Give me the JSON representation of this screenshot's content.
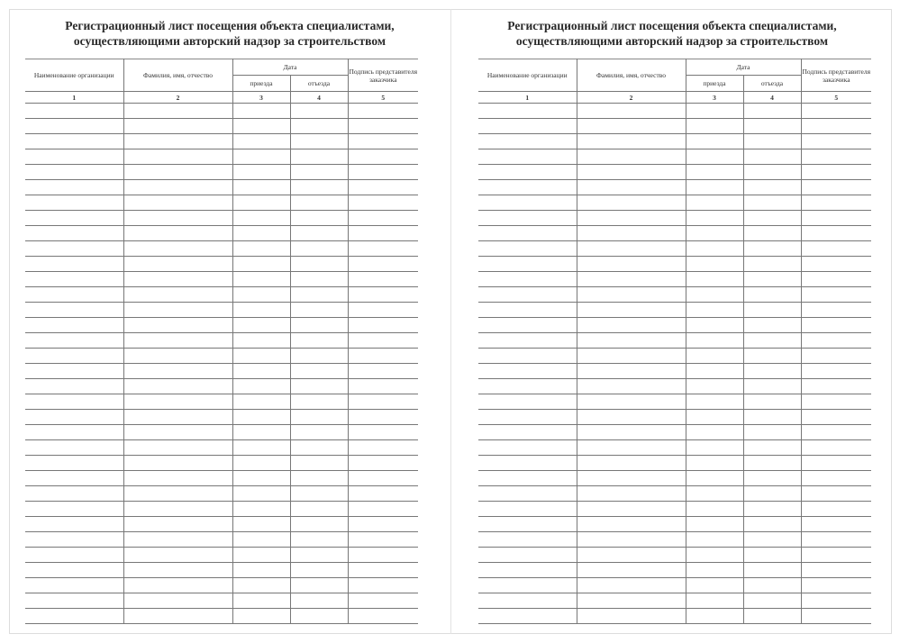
{
  "pages": [
    {
      "title_line1": "Регистрационный лист посещения объекта специалистами,",
      "title_line2": "осуществляющими авторский надзор за строительством",
      "columns": {
        "org": "Наименование организации",
        "name": "Фамилия, имя, отчество",
        "date": "Дата",
        "arrival": "приезда",
        "departure": "отъезда",
        "signature": "Подпись представителя заказчика"
      },
      "column_numbers": [
        "1",
        "2",
        "3",
        "4",
        "5"
      ]
    },
    {
      "title_line1": "Регистрационный лист посещения объекта специалистами,",
      "title_line2": "осуществляющими авторский надзор за строительством",
      "columns": {
        "org": "Наименование организации",
        "name": "Фамилия, имя, отчество",
        "date": "Дата",
        "arrival": "приезда",
        "departure": "отъезда",
        "signature": "Подпись представителя заказчика"
      },
      "column_numbers": [
        "1",
        "2",
        "3",
        "4",
        "5"
      ]
    }
  ]
}
